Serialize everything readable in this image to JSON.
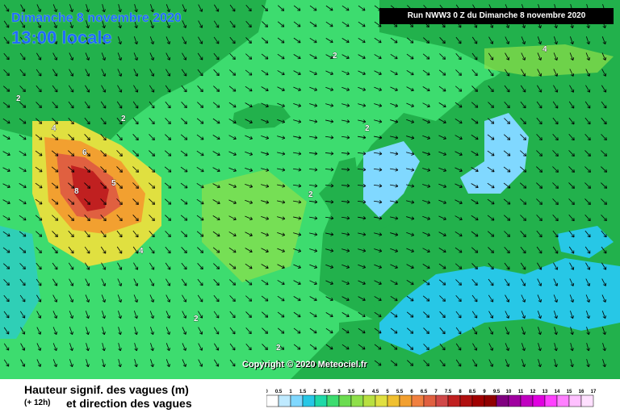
{
  "map": {
    "date_title": "Dimanche 8 novembre 2020",
    "time_title": "13:00 locale",
    "run_label": "Run NWW3 0 Z du Dimanche 8 novembre 2020",
    "copyright": "Copyright © 2020 Meteociel.fr",
    "contour_labels": [
      "2",
      "4",
      "6",
      "8",
      "5",
      "4",
      "2",
      "2",
      "2",
      "4",
      "2",
      "2",
      "2"
    ],
    "colors": {
      "land": "#22b14c",
      "sea_low": "#bfeaff",
      "sea_1": "#27c7e6",
      "sea_15": "#1fd9a8",
      "sea_2": "#3ddc6f",
      "sea_3": "#8fe04a",
      "sea_4": "#e0e040",
      "sea_5": "#f2a030",
      "sea_6": "#e06040",
      "sea_8": "#c02020",
      "arrows": "#000000"
    }
  },
  "legend": {
    "title": "Hauteur signif. des vagues (m)",
    "step": "(+ 12h)",
    "subtitle": "et direction des vagues",
    "ticks": [
      "0",
      "0.5",
      "1",
      "1.5",
      "2",
      "2.5",
      "3",
      "3.5",
      "4",
      "4.5",
      "5",
      "5.5",
      "6",
      "6.5",
      "7",
      "7.5",
      "8",
      "8.5",
      "9",
      "9.5",
      "10",
      "11",
      "12",
      "13",
      "14",
      "15",
      "16",
      "17"
    ],
    "colors": [
      "#ffffff",
      "#bfeaff",
      "#80d8ff",
      "#27c7e6",
      "#1fd9a8",
      "#3ddc6f",
      "#6bdc50",
      "#8fe04a",
      "#b8e040",
      "#e0e040",
      "#f0c030",
      "#f2a030",
      "#f08040",
      "#e06040",
      "#d04848",
      "#c02020",
      "#b01010",
      "#a00000",
      "#900000",
      "#800080",
      "#a000a0",
      "#c000c0",
      "#e000e0",
      "#ff40ff",
      "#ff80ff",
      "#ffc0ff",
      "#ffe0ff"
    ]
  }
}
